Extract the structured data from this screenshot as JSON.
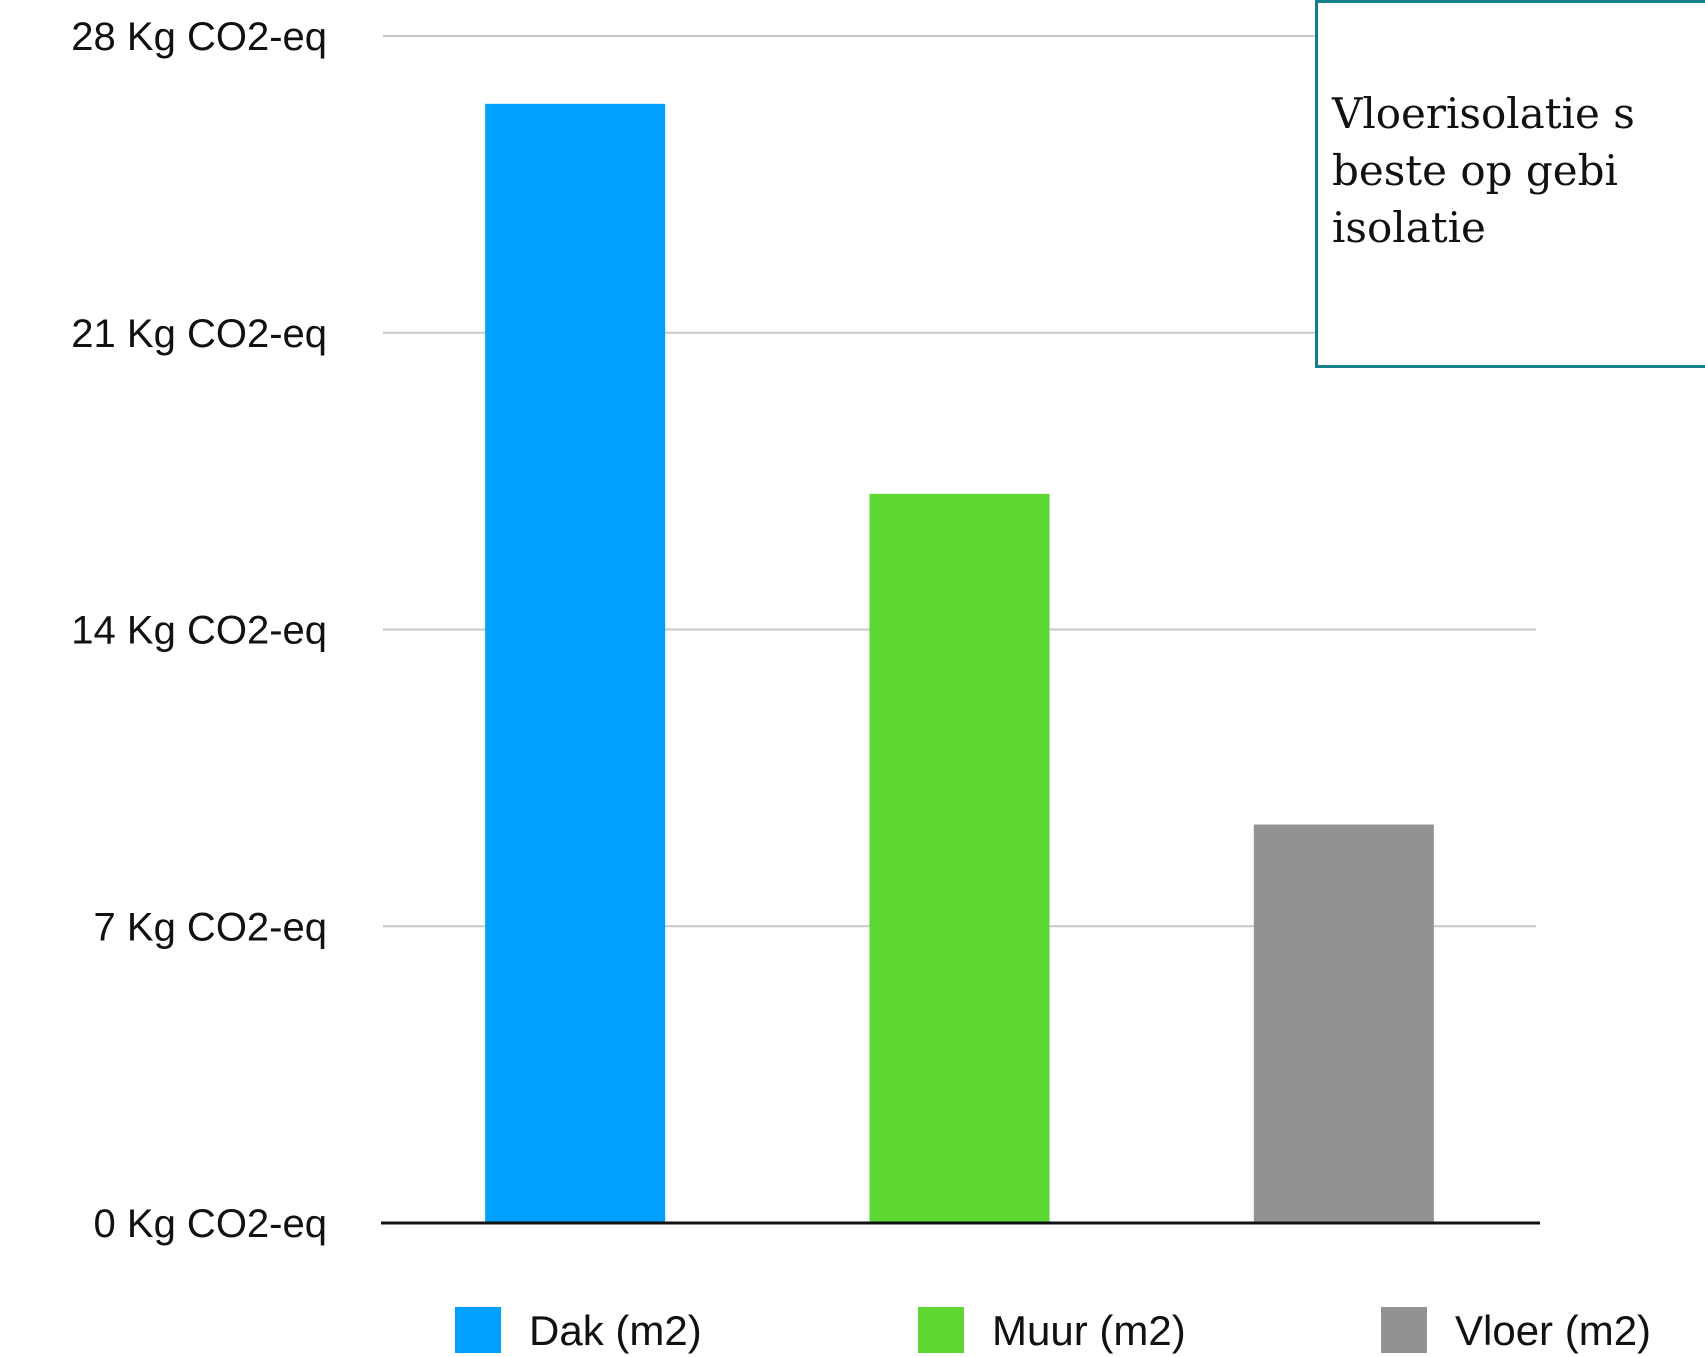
{
  "chart_data": {
    "type": "bar",
    "categories": [
      "Dak (m2)",
      "Muur (m2)",
      "Vloer (m2)"
    ],
    "values": [
      26.4,
      17.2,
      9.4
    ],
    "colors": [
      "#00a1fe",
      "#5dd833",
      "#929292"
    ],
    "ylim": [
      0,
      28
    ],
    "yticks": [
      0,
      7,
      14,
      21,
      28
    ],
    "ytick_labels": [
      "0 Kg CO2-eq",
      "7 Kg CO2-eq",
      "14 Kg CO2-eq",
      "21 Kg CO2-eq",
      "28 Kg CO2-eq"
    ],
    "grid": true,
    "legend_position": "bottom",
    "title": "",
    "xlabel": "",
    "ylabel": ""
  },
  "note": {
    "text": "Vloerisolatie s\nbeste op gebi\nisolatie",
    "border_color": "#137f89"
  }
}
